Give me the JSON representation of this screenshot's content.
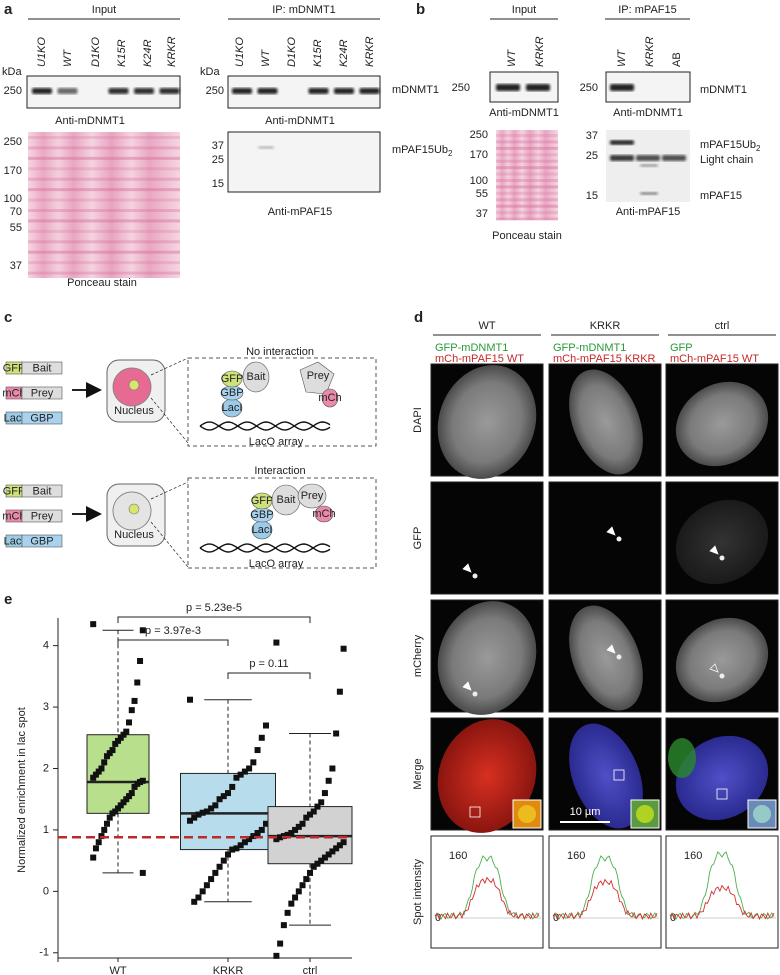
{
  "a": {
    "label": "a",
    "input": {
      "title": "Input",
      "lanes": [
        "U1KO",
        "WT",
        "D1KO",
        "K15R",
        "K24R",
        "KRKR"
      ],
      "kda": "kDa",
      "blot_markers": [
        250
      ],
      "blot_label": "Anti-mDNMT1",
      "ponceau_markers": [
        250,
        170,
        100,
        70,
        55,
        37
      ],
      "ponceau_label": "Ponceau stain"
    },
    "ip": {
      "title": "IP: mDNMT1",
      "lanes": [
        "U1KO",
        "WT",
        "D1KO",
        "K15R",
        "K24R",
        "KRKR"
      ],
      "kda": "kDa",
      "blot1_markers": [
        250
      ],
      "blot1_band": "mDNMT1",
      "blot1_label": "Anti-mDNMT1",
      "blot2_markers": [
        37,
        25,
        15
      ],
      "blot2_band": {
        "text": "mPAF15Ub",
        "sub": "2"
      },
      "blot2_label": "Anti-mPAF15"
    }
  },
  "b": {
    "label": "b",
    "input": {
      "title": "Input",
      "lanes": [
        "WT",
        "KRKR"
      ],
      "blot_markers": [
        250
      ],
      "blot_label": "Anti-mDNMT1",
      "ponceau_markers": [
        250,
        170,
        100,
        55,
        37
      ],
      "ponceau_label": "Ponceau stain"
    },
    "ip": {
      "title": "IP: mPAF15",
      "lanes": [
        "WT",
        "KRKR",
        "AB"
      ],
      "blot1_markers": [
        250
      ],
      "blot1_band": "mDNMT1",
      "blot1_label": "Anti-mDNMT1",
      "blot2_markers": [
        37,
        25,
        15
      ],
      "blot2_bands": [
        {
          "text": "mPAF15Ub",
          "sub": "2"
        },
        {
          "text": "Light chain"
        },
        {
          "text": "mPAF15"
        }
      ],
      "blot2_label": "Anti-mPAF15"
    }
  },
  "c": {
    "label": "c",
    "no_interaction": "No interaction",
    "interaction": "Interaction",
    "constructs": [
      {
        "tag": "GFP",
        "part": "Bait"
      },
      {
        "tag": "mCh",
        "part": "Prey"
      },
      {
        "tag": "LacI",
        "part": "GBP"
      }
    ],
    "nucleus": "Nucleus",
    "array": "LacO array"
  },
  "d": {
    "label": "d",
    "columns": [
      {
        "name": "WT",
        "green": "GFP-mDNMT1",
        "red": "mCh-mPAF15 WT"
      },
      {
        "name": "KRKR",
        "green": "GFP-mDNMT1",
        "red": "mCh-mPAF15 KRKR"
      },
      {
        "name": "ctrl",
        "green": "GFP",
        "red": "mCh-mPAF15 WT"
      }
    ],
    "rows": [
      "DAPI",
      "GFP",
      "mCherry",
      "Merge",
      "Spot intensity"
    ],
    "scale_bar": "10 µm",
    "spot_ticks": [
      160,
      0
    ]
  },
  "e": {
    "label": "e",
    "type": "box",
    "ylabel": "Normalized enrichment in lac spot",
    "ylim": [
      -1.15,
      4.45
    ],
    "yticks": [
      -1,
      0,
      1,
      2,
      3,
      4
    ],
    "reference_line": 0.88,
    "reference_color": "#c0282a",
    "groups": [
      {
        "name": "WT",
        "color": "#b7df8c",
        "q1": 1.27,
        "median": 1.78,
        "q3": 2.55,
        "whisker_low": 0.3,
        "whisker_high": 4.25,
        "points": [
          4.35,
          4.25,
          3.75,
          3.4,
          3.1,
          2.95,
          2.75,
          2.6,
          2.55,
          2.5,
          2.45,
          2.4,
          2.3,
          2.25,
          2.2,
          2.1,
          2.0,
          1.95,
          1.9,
          1.85,
          1.8,
          1.78,
          1.75,
          1.7,
          1.6,
          1.55,
          1.5,
          1.45,
          1.4,
          1.35,
          1.3,
          1.27,
          1.2,
          1.1,
          1.0,
          0.9,
          0.8,
          0.7,
          0.55,
          0.3
        ]
      },
      {
        "name": "KRKR",
        "color": "#b7dcec",
        "q1": 0.68,
        "median": 1.27,
        "q3": 1.92,
        "whisker_low": -0.17,
        "whisker_high": 3.12,
        "points": [
          3.12,
          2.7,
          2.5,
          2.3,
          2.1,
          2.0,
          1.95,
          1.9,
          1.85,
          1.7,
          1.6,
          1.55,
          1.5,
          1.4,
          1.35,
          1.3,
          1.28,
          1.25,
          1.2,
          1.15,
          1.1,
          1.0,
          0.95,
          0.9,
          0.85,
          0.8,
          0.75,
          0.7,
          0.68,
          0.6,
          0.5,
          0.4,
          0.3,
          0.2,
          0.1,
          0.0,
          -0.1,
          -0.17
        ]
      },
      {
        "name": "ctrl",
        "color": "#d2d2d2",
        "q1": 0.45,
        "median": 0.9,
        "q3": 1.38,
        "whisker_low": -0.55,
        "whisker_high": 2.57,
        "points": [
          4.05,
          3.95,
          3.25,
          2.57,
          2.0,
          1.8,
          1.6,
          1.45,
          1.38,
          1.3,
          1.25,
          1.2,
          1.1,
          1.05,
          1.0,
          0.95,
          0.92,
          0.9,
          0.88,
          0.85,
          0.8,
          0.75,
          0.7,
          0.65,
          0.6,
          0.55,
          0.5,
          0.45,
          0.4,
          0.3,
          0.2,
          0.1,
          0.0,
          -0.1,
          -0.2,
          -0.35,
          -0.55,
          -0.85,
          -1.05
        ]
      }
    ],
    "comparisons": [
      {
        "text": "p = 5.23e-5",
        "from": 0,
        "to": 2
      },
      {
        "text": "p = 3.97e-3",
        "from": 0,
        "to": 1
      },
      {
        "text": "p = 0.11",
        "from": 1,
        "to": 2
      }
    ]
  }
}
